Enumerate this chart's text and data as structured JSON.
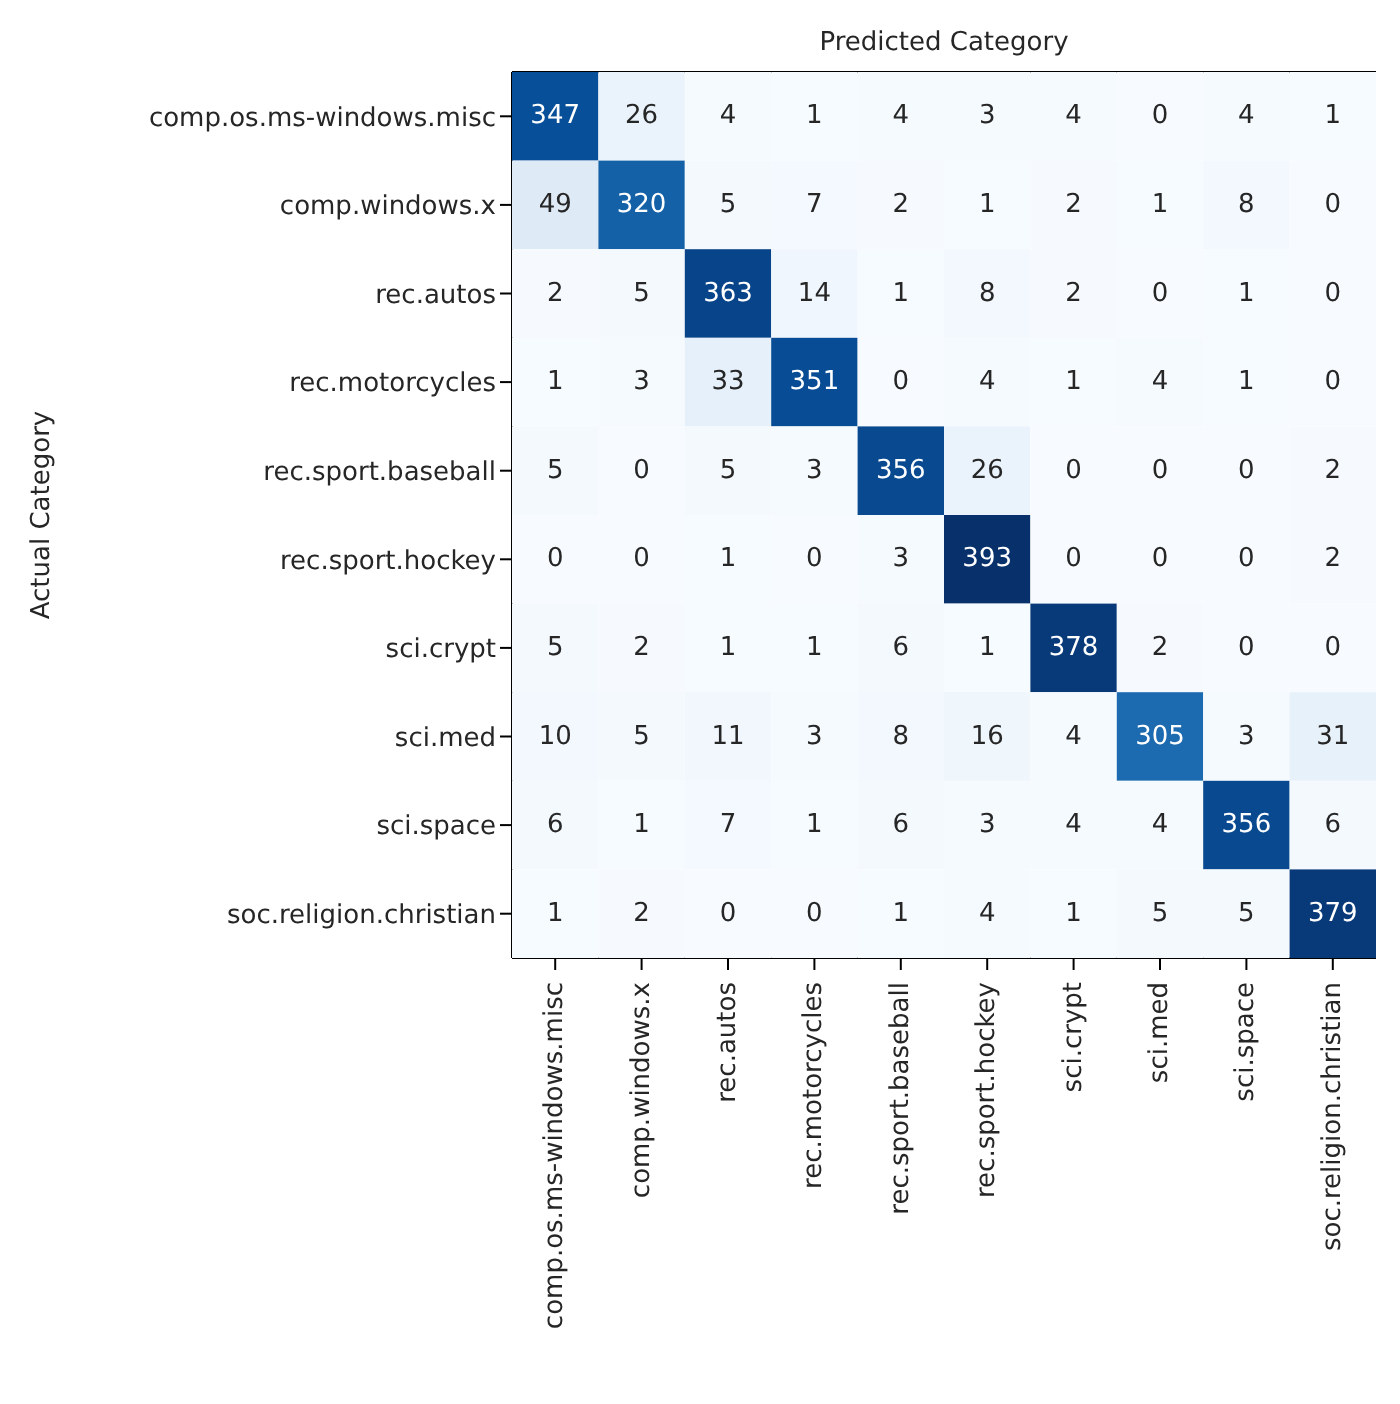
{
  "chart_data": {
    "type": "heatmap",
    "xlabel": "Predicted Category",
    "ylabel": "Actual Category",
    "categories": [
      "comp.os.ms-windows.misc",
      "comp.windows.x",
      "rec.autos",
      "rec.motorcycles",
      "rec.sport.baseball",
      "rec.sport.hockey",
      "sci.crypt",
      "sci.med",
      "sci.space",
      "soc.religion.christian"
    ],
    "y_categories": [
      "comp.os.ms-windows.misc",
      "comp.windows.x",
      "rec.autos",
      "rec.motorcycles",
      "rec.sport.baseball",
      "rec.sport.hockey",
      "sci.crypt",
      "sci.med",
      "sci.space",
      "soc.religion.christian"
    ],
    "cells": [
      [
        347,
        26,
        4,
        1,
        4,
        3,
        4,
        0,
        4,
        1
      ],
      [
        49,
        320,
        5,
        7,
        2,
        1,
        2,
        1,
        8,
        0
      ],
      [
        2,
        5,
        363,
        14,
        1,
        8,
        2,
        0,
        1,
        0
      ],
      [
        1,
        3,
        33,
        351,
        0,
        4,
        1,
        4,
        1,
        0
      ],
      [
        5,
        0,
        5,
        3,
        356,
        26,
        0,
        0,
        0,
        2
      ],
      [
        0,
        0,
        1,
        0,
        3,
        393,
        0,
        0,
        0,
        2
      ],
      [
        5,
        2,
        1,
        1,
        6,
        1,
        378,
        2,
        0,
        0
      ],
      [
        10,
        5,
        11,
        3,
        8,
        16,
        4,
        305,
        3,
        31
      ],
      [
        6,
        1,
        7,
        1,
        6,
        3,
        4,
        4,
        356,
        6
      ],
      [
        1,
        2,
        0,
        0,
        1,
        4,
        1,
        5,
        5,
        379
      ]
    ],
    "data_labels": true
  }
}
